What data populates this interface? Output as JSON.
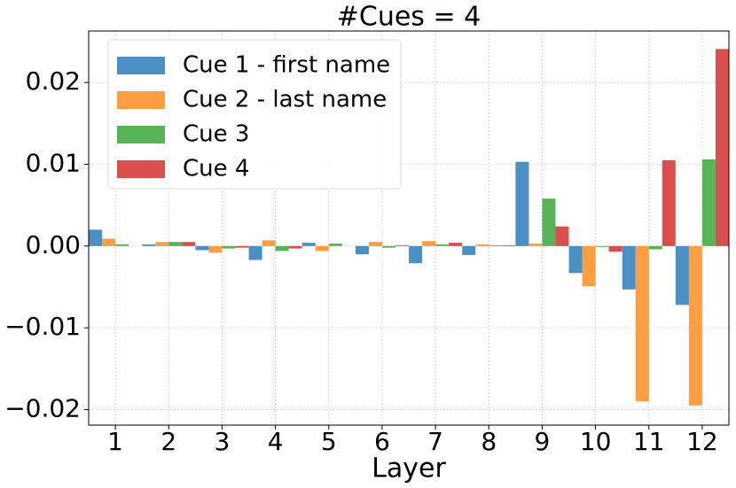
{
  "chart_data": {
    "type": "bar",
    "title": "#Cues = 4",
    "x_label": "Layer",
    "categories": [
      "1",
      "2",
      "3",
      "4",
      "5",
      "6",
      "7",
      "8",
      "9",
      "10",
      "11",
      "12"
    ],
    "series": [
      {
        "name": "Cue 1 - first name",
        "color": "#4a90c4",
        "values": [
          0.002,
          0.0002,
          -0.0005,
          -0.0017,
          0.0004,
          -0.001,
          -0.0021,
          -0.0011,
          0.0103,
          -0.0033,
          -0.0053,
          -0.0072
        ]
      },
      {
        "name": "Cue 2 - last name",
        "color": "#ff9e40",
        "values": [
          0.0009,
          0.0005,
          -0.0008,
          0.0007,
          -0.0006,
          0.0005,
          0.0006,
          0.0002,
          0.0003,
          -0.0049,
          -0.019,
          -0.0195
        ]
      },
      {
        "name": "Cue 3",
        "color": "#56b356",
        "values": [
          0.0002,
          0.0005,
          -0.0003,
          -0.0006,
          0.0003,
          -0.0002,
          0.0002,
          0.0001,
          0.0058,
          -0.0001,
          -0.0004,
          0.0106
        ]
      },
      {
        "name": "Cue 4",
        "color": "#dc4d4d",
        "values": [
          0.0,
          0.0005,
          -0.0002,
          -0.0003,
          0.0,
          0.0001,
          0.0004,
          0.0001,
          0.0024,
          -0.0007,
          0.0105,
          0.0241
        ]
      }
    ],
    "ylim": [
      -0.0219,
      0.0263
    ],
    "yticks": [
      {
        "value": -0.02,
        "label": "−0.02"
      },
      {
        "value": -0.01,
        "label": "−0.01"
      },
      {
        "value": 0,
        "label": "0.00"
      },
      0.01,
      0.02
    ],
    "grid": true,
    "legend": "upper left"
  }
}
